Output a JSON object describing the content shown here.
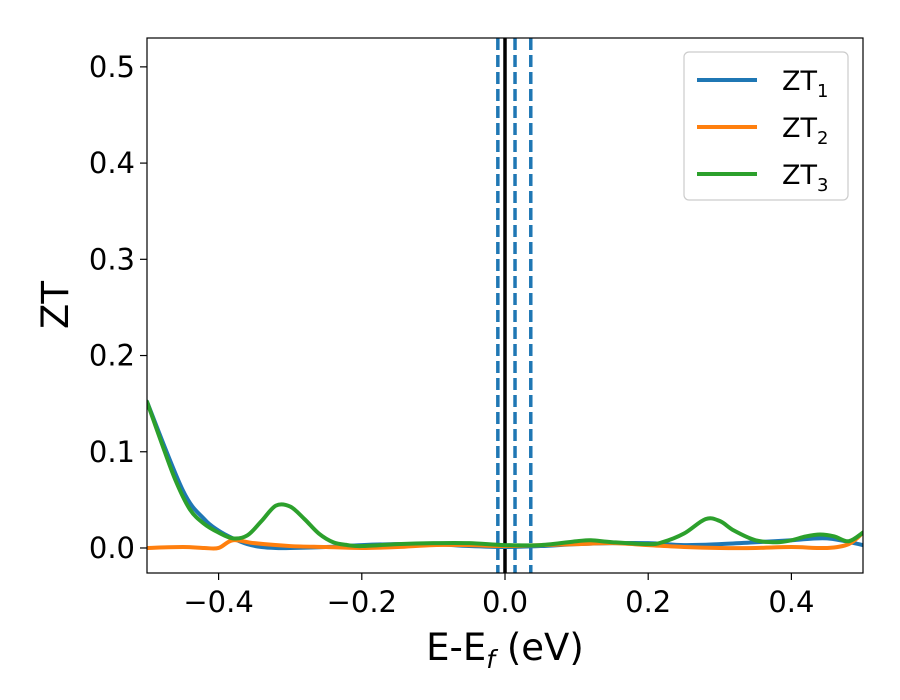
{
  "chart_data": {
    "type": "line",
    "title": "",
    "xlabel": "E-E",
    "xlabel_sub": "f",
    "xlabel_unit": " (eV)",
    "ylabel": "ZT",
    "xlim": [
      -0.5,
      0.5
    ],
    "ylim": [
      -0.026,
      0.53
    ],
    "xticks": [
      -0.4,
      -0.2,
      0.0,
      0.2,
      0.4
    ],
    "xtick_labels": [
      "−0.4",
      "−0.2",
      "0.0",
      "0.2",
      "0.4"
    ],
    "yticks": [
      0.0,
      0.1,
      0.2,
      0.3,
      0.4,
      0.5
    ],
    "ytick_labels": [
      "0.0",
      "0.1",
      "0.2",
      "0.3",
      "0.4",
      "0.5"
    ],
    "grid": false,
    "legend_position": "top-right",
    "vlines": [
      {
        "x": 0.0,
        "color": "#000000",
        "style": "solid"
      },
      {
        "x": -0.01,
        "color": "#1f77b4",
        "style": "dashed"
      },
      {
        "x": 0.014,
        "color": "#1f77b4",
        "style": "dashed"
      },
      {
        "x": 0.036,
        "color": "#1f77b4",
        "style": "dashed"
      }
    ],
    "series": [
      {
        "name": "ZT",
        "sub": "1",
        "color": "#1f77b4",
        "x": [
          -0.5,
          -0.45,
          -0.42,
          -0.4,
          -0.38,
          -0.36,
          -0.34,
          -0.32,
          -0.3,
          -0.25,
          -0.2,
          -0.15,
          -0.1,
          -0.05,
          0.0,
          0.05,
          0.1,
          0.15,
          0.2,
          0.25,
          0.3,
          0.35,
          0.4,
          0.45,
          0.5
        ],
        "y": [
          0.152,
          0.06,
          0.03,
          0.018,
          0.01,
          0.004,
          0.001,
          0.0,
          0.0,
          0.001,
          0.003,
          0.004,
          0.004,
          0.002,
          0.001,
          0.002,
          0.004,
          0.005,
          0.005,
          0.003,
          0.004,
          0.006,
          0.008,
          0.01,
          0.003
        ]
      },
      {
        "name": "ZT",
        "sub": "2",
        "color": "#ff7f0e",
        "x": [
          -0.5,
          -0.45,
          -0.42,
          -0.4,
          -0.38,
          -0.35,
          -0.3,
          -0.25,
          -0.2,
          -0.15,
          -0.1,
          -0.05,
          0.0,
          0.05,
          0.1,
          0.15,
          0.2,
          0.25,
          0.3,
          0.35,
          0.4,
          0.45,
          0.48,
          0.5
        ],
        "y": [
          0.0,
          0.001,
          0.0,
          0.0,
          0.008,
          0.005,
          0.002,
          0.001,
          0.0,
          0.001,
          0.003,
          0.003,
          0.002,
          0.003,
          0.004,
          0.005,
          0.003,
          0.001,
          0.0,
          0.0,
          0.001,
          0.0,
          0.004,
          0.016
        ]
      },
      {
        "name": "ZT",
        "sub": "3",
        "color": "#2ca02c",
        "x": [
          -0.5,
          -0.48,
          -0.46,
          -0.44,
          -0.42,
          -0.4,
          -0.38,
          -0.36,
          -0.34,
          -0.32,
          -0.3,
          -0.28,
          -0.26,
          -0.24,
          -0.22,
          -0.2,
          -0.15,
          -0.1,
          -0.05,
          0.0,
          0.05,
          0.1,
          0.12,
          0.15,
          0.2,
          0.22,
          0.25,
          0.28,
          0.3,
          0.32,
          0.35,
          0.38,
          0.4,
          0.42,
          0.44,
          0.46,
          0.48,
          0.5
        ],
        "y": [
          0.152,
          0.11,
          0.07,
          0.04,
          0.025,
          0.016,
          0.01,
          0.013,
          0.028,
          0.044,
          0.043,
          0.03,
          0.015,
          0.006,
          0.003,
          0.002,
          0.004,
          0.005,
          0.005,
          0.003,
          0.003,
          0.007,
          0.008,
          0.006,
          0.004,
          0.006,
          0.015,
          0.03,
          0.028,
          0.018,
          0.008,
          0.006,
          0.008,
          0.012,
          0.014,
          0.012,
          0.007,
          0.016
        ]
      }
    ]
  }
}
